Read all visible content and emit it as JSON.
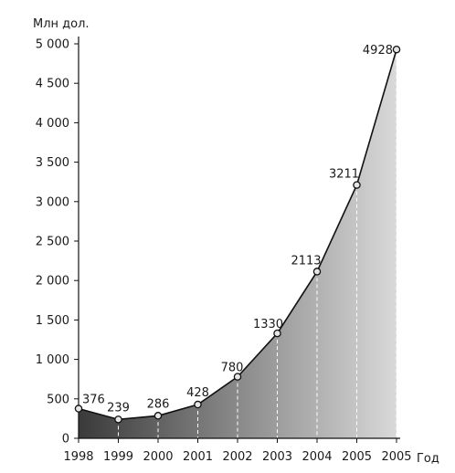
{
  "chart_data": {
    "type": "area",
    "ylabel": "Млн дол.",
    "xlabel": "Год",
    "categories": [
      "1998",
      "1999",
      "2000",
      "2001",
      "2002",
      "2003",
      "2004",
      "2005",
      "2005"
    ],
    "values": [
      376,
      239,
      286,
      428,
      780,
      1330,
      2113,
      3211,
      4928
    ],
    "data_labels": [
      "376",
      "239",
      "286",
      "428",
      "780",
      "1330",
      "2113",
      "3211",
      "4928"
    ],
    "ylim": [
      0,
      5000
    ],
    "yticks": [
      0,
      500,
      1000,
      1500,
      2000,
      2500,
      3000,
      3500,
      4000,
      4500,
      5000
    ],
    "ytick_labels": [
      "0",
      "500",
      "1 000",
      "1 500",
      "2 000",
      "2 500",
      "3 000",
      "3 500",
      "4 000",
      "4 500",
      "5 000"
    ],
    "grid": false,
    "legend": "none",
    "fill_gradient": [
      "#d9d9d9",
      "#3a3a3a"
    ],
    "line_color": "#111111",
    "marker_fill": "#e6e6e6"
  }
}
